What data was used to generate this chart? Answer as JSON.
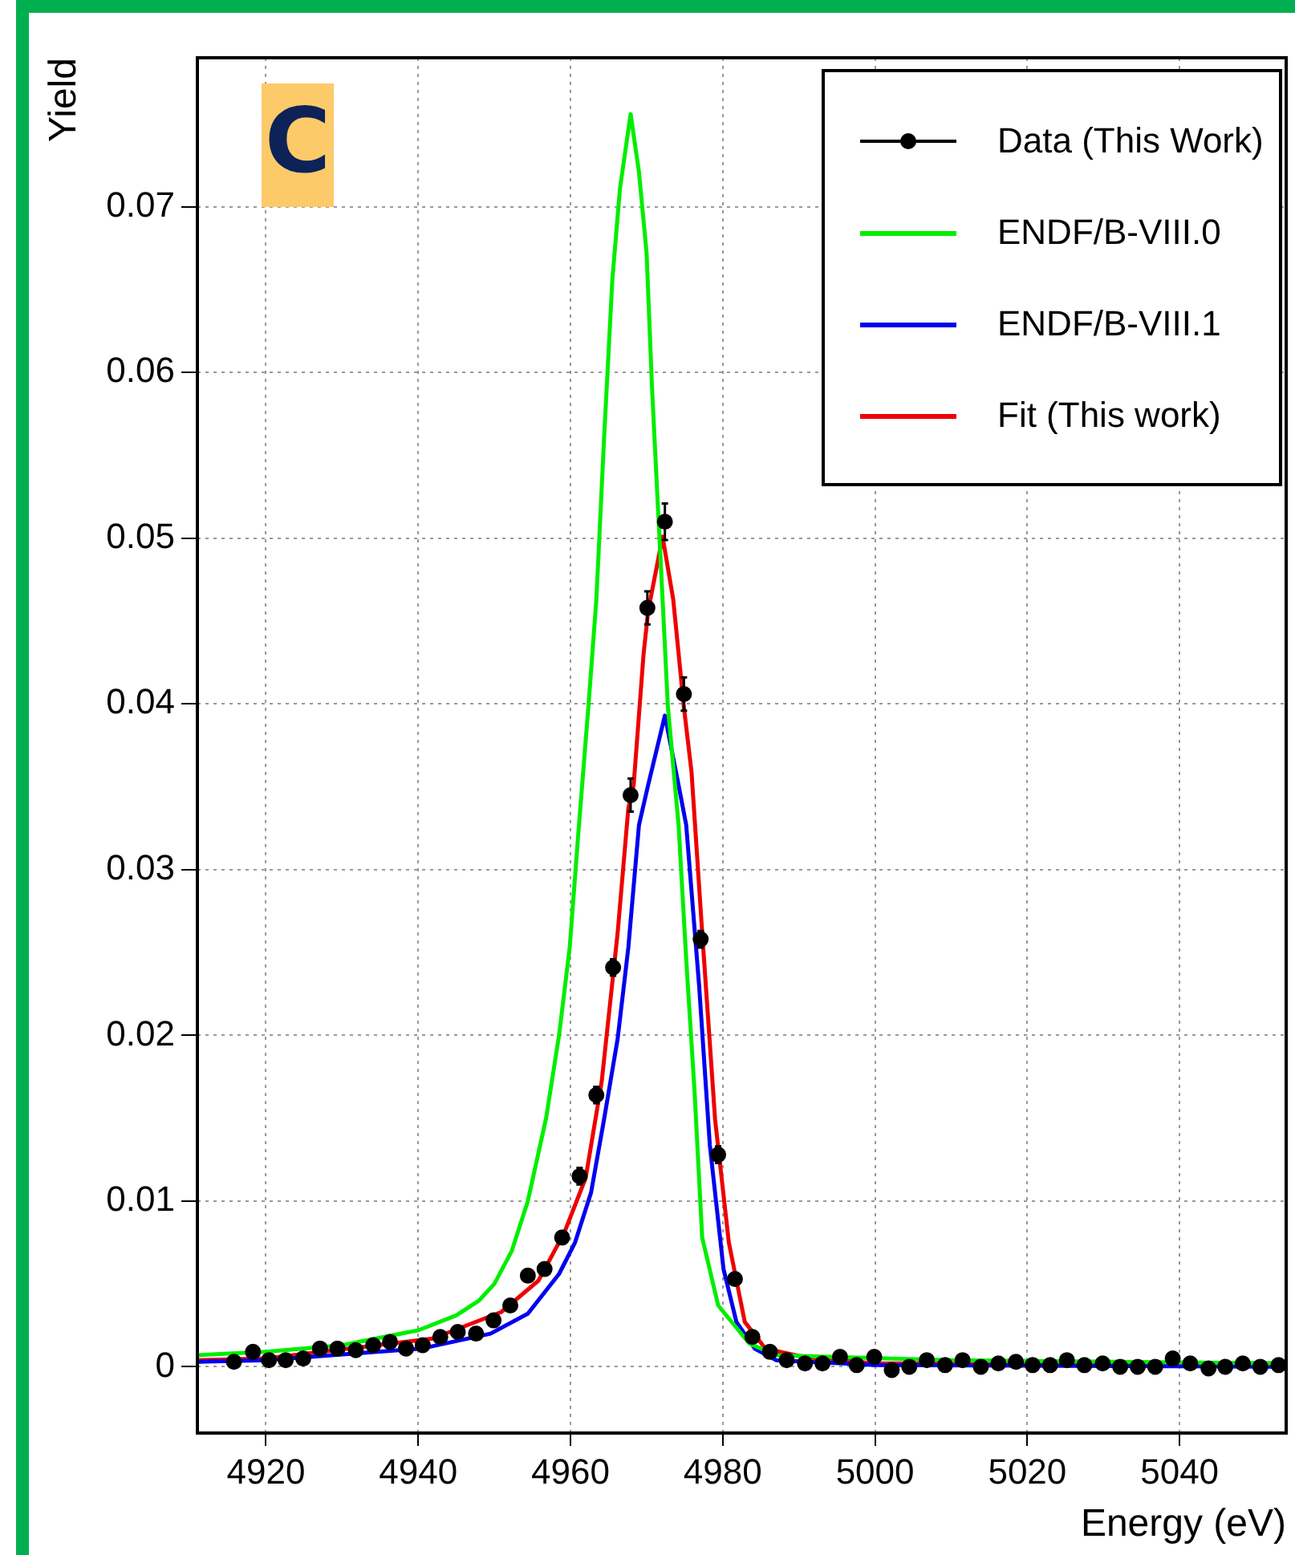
{
  "chart_data": {
    "type": "line",
    "xlabel": "Energy (eV)",
    "ylabel": "Yield",
    "annotations": [
      "C"
    ],
    "xlim": [
      4911,
      5054
    ],
    "xticks": [
      4920,
      4940,
      4960,
      4980,
      5000,
      5020,
      5040
    ],
    "ylim": [
      -0.004,
      0.079
    ],
    "yticks": [
      0,
      0.01,
      0.02,
      0.03,
      0.04,
      0.05,
      0.06,
      0.07
    ],
    "grid": true,
    "legend": "top right",
    "series": [
      {
        "name": "Data (This Work)",
        "type": "scatter",
        "marker": "circle",
        "color": "#000000",
        "x": [
          4915.8,
          4918.3,
          4920.4,
          4922.6,
          4924.9,
          4927.1,
          4929.4,
          4931.8,
          4934.1,
          4936.3,
          4938.4,
          4940.6,
          4942.9,
          4945.2,
          4947.6,
          4949.9,
          4952.1,
          4954.4,
          4956.6,
          4958.9,
          4961.2,
          4963.4,
          4965.6,
          4967.9,
          4970.1,
          4972.4,
          4974.9,
          4977.1,
          4979.4,
          4981.6,
          4983.9,
          4986.2,
          4988.4,
          4990.8,
          4993.1,
          4995.4,
          4997.6,
          4999.9,
          5002.2,
          5004.5,
          5006.8,
          5009.2,
          5011.5,
          5013.9,
          5016.2,
          5018.5,
          5020.7,
          5023.0,
          5025.2,
          5027.5,
          5029.9,
          5032.2,
          5034.5,
          5036.8,
          5039.1,
          5041.4,
          5043.8,
          5046.0,
          5048.3,
          5050.6,
          5053.0
        ],
        "values": [
          0.0003,
          0.0009,
          0.0004,
          0.0004,
          0.0005,
          0.0011,
          0.0011,
          0.001,
          0.0013,
          0.0015,
          0.0011,
          0.0013,
          0.0018,
          0.0021,
          0.002,
          0.0028,
          0.0037,
          0.0055,
          0.0059,
          0.0078,
          0.0115,
          0.0164,
          0.0241,
          0.0345,
          0.0458,
          0.051,
          0.0406,
          0.0258,
          0.0128,
          0.0053,
          0.0018,
          0.0009,
          0.0004,
          0.0002,
          0.0002,
          0.0006,
          0.0001,
          0.0006,
          -0.0002,
          0,
          0.0004,
          0.0001,
          0.0004,
          0,
          0.0002,
          0.0003,
          0.0001,
          0.0001,
          0.0004,
          0.0001,
          0.0002,
          0,
          0,
          0,
          0.0005,
          0.0002,
          -0.0001,
          0,
          0.0002,
          0,
          0.0001
        ],
        "errors": [
          null,
          null,
          null,
          null,
          null,
          null,
          null,
          null,
          null,
          null,
          null,
          null,
          null,
          null,
          null,
          null,
          null,
          null,
          null,
          null,
          0.0005,
          0.0005,
          0.0005,
          0.001,
          0.001,
          0.0011,
          0.001,
          0.0005,
          0.0005,
          null,
          null,
          null,
          null,
          null,
          null,
          null,
          null,
          null,
          null,
          null,
          null,
          null,
          null,
          null,
          null,
          null,
          null,
          null,
          null,
          null,
          null,
          null,
          null,
          null,
          null,
          null,
          null,
          null,
          null,
          null,
          null
        ]
      },
      {
        "name": "ENDF/B-VIII.0",
        "color": "#00ee00",
        "x": [
          4911,
          4920,
          4930,
          4940,
          4945,
          4948,
          4950,
          4952.3,
          4954.4,
          4956.8,
          4958.5,
          4959.9,
          4961,
          4962.4,
          4963.4,
          4964.4,
          4965.5,
          4966.5,
          4967.9,
          4969,
          4970,
          4970.7,
          4971.4,
          4972.1,
          4972.8,
          4974.2,
          4975.2,
          4976.3,
          4977.3,
          4979.4,
          4983.5,
          4987,
          4994,
          5010,
          5054
        ],
        "values": [
          0.0007,
          0.0009,
          0.0013,
          0.0022,
          0.0031,
          0.004,
          0.005,
          0.007,
          0.01,
          0.015,
          0.02,
          0.0253,
          0.032,
          0.0401,
          0.0463,
          0.0559,
          0.0656,
          0.0711,
          0.0756,
          0.0721,
          0.0672,
          0.0592,
          0.0527,
          0.0463,
          0.0398,
          0.0327,
          0.0246,
          0.0166,
          0.0078,
          0.0037,
          0.0014,
          0.0007,
          0.0006,
          0.0004,
          0.0002
        ]
      },
      {
        "name": "ENDF/B-VIII.1",
        "color": "#0000ee",
        "x": [
          4911,
          4920,
          4940.5,
          4949.5,
          4954.4,
          4958.5,
          4960.6,
          4962.7,
          4964.4,
          4966.2,
          4967.6,
          4969,
          4970.2,
          4972.4,
          4974.2,
          4975.2,
          4976.9,
          4978.3,
          4980.1,
          4981.8,
          4984.2,
          4987,
          5000,
          5054
        ],
        "values": [
          0.0003,
          0.0004,
          0.0011,
          0.002,
          0.0032,
          0.0056,
          0.0075,
          0.0105,
          0.0149,
          0.0198,
          0.0253,
          0.0327,
          0.0351,
          0.0393,
          0.0351,
          0.0327,
          0.023,
          0.0134,
          0.0059,
          0.0027,
          0.0011,
          0.0004,
          0.0001,
          0
        ]
      },
      {
        "name": "Fit (This work)",
        "color": "#ee0000",
        "x": [
          4911,
          4920,
          4941.9,
          4950.9,
          4955.8,
          4959.2,
          4962,
          4964.1,
          4966.2,
          4967.6,
          4968.3,
          4969.6,
          4970.2,
          4972.1,
          4973.5,
          4974.9,
          4975.9,
          4977.3,
          4979,
          4980.8,
          4982.9,
          4985.6,
          4990.5,
          5000,
          5054
        ],
        "values": [
          0.0004,
          0.0005,
          0.0017,
          0.0033,
          0.0052,
          0.0081,
          0.0114,
          0.0172,
          0.0262,
          0.0337,
          0.0351,
          0.043,
          0.0456,
          0.0501,
          0.0463,
          0.0398,
          0.0359,
          0.0262,
          0.0149,
          0.0075,
          0.0027,
          0.0011,
          0.0006,
          0.0002,
          0.0002
        ]
      }
    ]
  }
}
